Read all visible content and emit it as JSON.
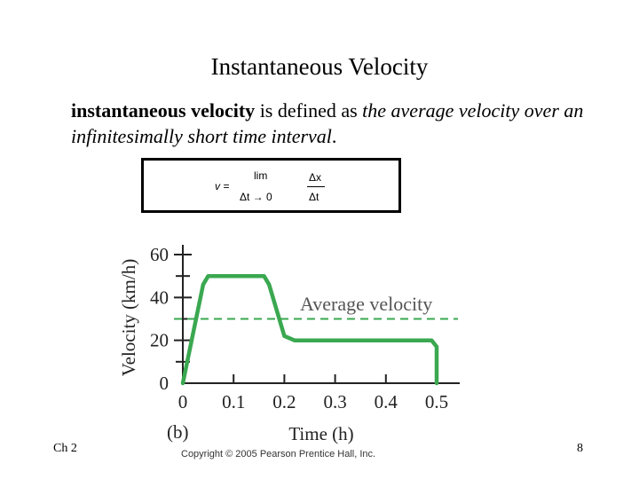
{
  "slide": {
    "title": "Instantaneous Velocity",
    "definition": {
      "bold_term": "instantaneous velocity",
      "plain_text": " is defined as ",
      "italic_text": "the average velocity over an infinitesimally short time interval",
      "end_punct": "."
    },
    "formula": {
      "lhs": "v  =",
      "lim": "lim",
      "condition": "Δt  →  0",
      "numerator": "Δx",
      "denominator": "Δt"
    },
    "footer_left": "Ch 2",
    "page_number": "8",
    "copyright": "Copyright © 2005 Pearson Prentice Hall, Inc."
  },
  "chart_data": {
    "type": "line",
    "panel_label": "(b)",
    "xlabel": "Time (h)",
    "ylabel": "Velocity (km/h)",
    "xlim": [
      0,
      0.5
    ],
    "ylim": [
      0,
      60
    ],
    "x_ticks": [
      "0",
      "0.1",
      "0.2",
      "0.3",
      "0.4",
      "0.5"
    ],
    "y_ticks": [
      "0",
      "20",
      "40",
      "60"
    ],
    "series": [
      {
        "color": "#3aa850",
        "x": [
          0,
          0.04,
          0.05,
          0.16,
          0.17,
          0.2,
          0.22,
          0.25,
          0.49,
          0.5,
          0.5
        ],
        "y": [
          0,
          46,
          50,
          50,
          46,
          22,
          20,
          20,
          20,
          17,
          0
        ]
      }
    ],
    "average_line": {
      "value": 30,
      "label": "Average velocity",
      "color": "#3aa850",
      "style": "dashed"
    }
  }
}
